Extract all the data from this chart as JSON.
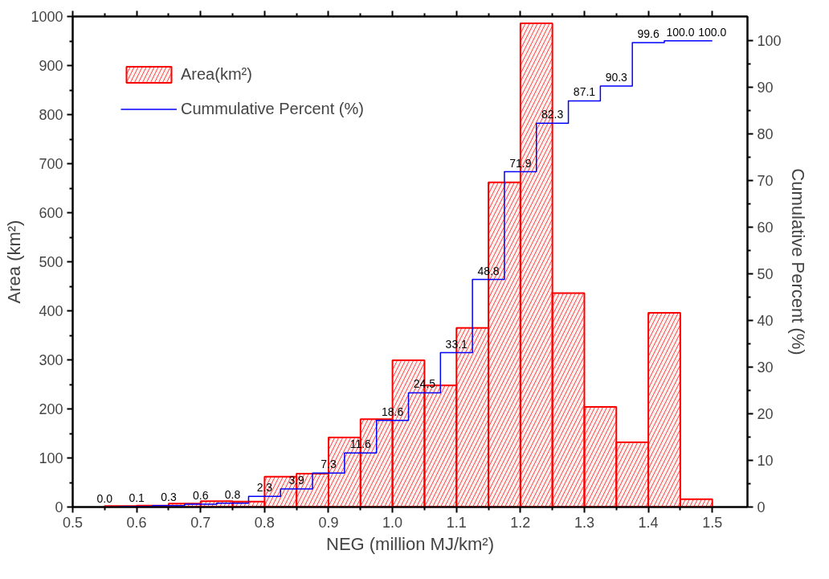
{
  "chart_data": {
    "type": "histogram",
    "xlabel": "NEG (million MJ/km²)",
    "ylabel": "Area (km²)",
    "y2label": "Cumulative Percent (%)",
    "legend": "top left",
    "grid": false,
    "bins": [
      0.55,
      0.6,
      0.65,
      0.7,
      0.75,
      0.8,
      0.85,
      0.9,
      0.95,
      1.0,
      1.05,
      1.1,
      1.15,
      1.2,
      1.25,
      1.3,
      1.35,
      1.4,
      1.45,
      1.5
    ],
    "xlim": [
      0.5,
      1.555
    ],
    "xticks": [
      0.5,
      0.6,
      0.7,
      0.8,
      0.9,
      {
        "value": 1,
        "label": "1.0"
      },
      1.1,
      1.2,
      1.3,
      1.4,
      1.5
    ],
    "ylim": [
      0,
      1000
    ],
    "yticks": [
      0,
      100,
      200,
      300,
      400,
      500,
      600,
      700,
      800,
      900,
      1000
    ],
    "y2lim": [
      0,
      105.2
    ],
    "y2ticks": [
      0,
      10,
      20,
      30,
      40,
      50,
      60,
      70,
      80,
      90,
      100
    ],
    "series": [
      {
        "name": "Area(km²)",
        "color": "#ff0000",
        "values": [
          2,
          3,
          7,
          12,
          11,
          62,
          68,
          142,
          179,
          299,
          248,
          365,
          662,
          986,
          436,
          204,
          132,
          396,
          16
        ]
      },
      {
        "name": "Cummulative Percent (%)",
        "type": "step",
        "axis": "y2",
        "color": "#0000ff",
        "x": [
          0.55,
          0.6,
          0.65,
          0.7,
          0.75,
          0.8,
          0.85,
          0.9,
          0.95,
          1.0,
          1.05,
          1.1,
          1.15,
          1.2,
          1.25,
          1.3,
          1.35,
          1.4,
          1.45,
          1.5
        ],
        "values": [
          0.0,
          0.1,
          0.3,
          0.6,
          0.8,
          2.3,
          3.9,
          7.3,
          11.6,
          18.6,
          24.5,
          33.1,
          48.8,
          71.9,
          82.3,
          87.1,
          90.3,
          99.6,
          100.0,
          100.0
        ],
        "value_labels": [
          "0.0",
          "0.1",
          "0.3",
          "0.6",
          "0.8",
          "2.3",
          "3.9",
          "7.3",
          "11.6",
          "18.6",
          "24.5",
          "33.1",
          "48.8",
          "71.9",
          "82.3",
          "87.1",
          "90.3",
          "99.6",
          "100.0",
          "100.0"
        ]
      }
    ]
  }
}
